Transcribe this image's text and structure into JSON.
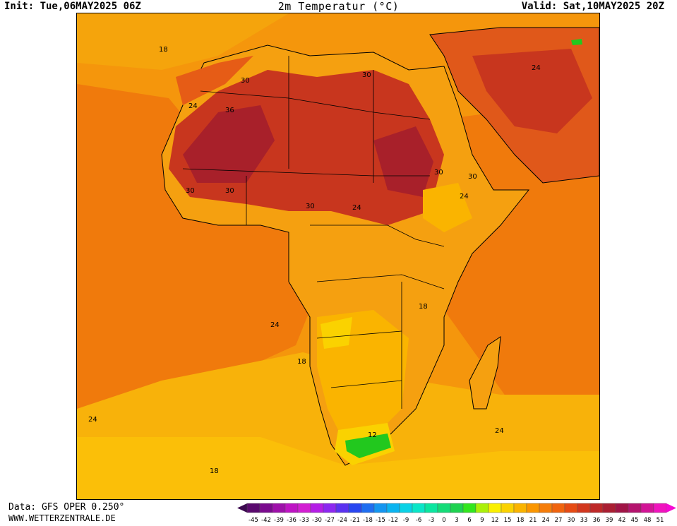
{
  "header": {
    "init": "Init: Tue,06MAY2025 06Z",
    "title": "2m Temperatur (°C)",
    "valid": "Valid: Sat,10MAY2025 20Z"
  },
  "footer": {
    "source": "Data: GFS OPER 0.250°",
    "site": "WWW.WETTERZENTRALE.DE"
  },
  "map": {
    "region": "Africa",
    "contour_labels": [
      {
        "text": "18"
      },
      {
        "text": "30"
      },
      {
        "text": "24"
      },
      {
        "text": "36"
      },
      {
        "text": "30"
      },
      {
        "text": "30"
      },
      {
        "text": "30"
      },
      {
        "text": "24"
      },
      {
        "text": "30"
      },
      {
        "text": "30"
      },
      {
        "text": "24"
      },
      {
        "text": "30"
      },
      {
        "text": "24"
      },
      {
        "text": "18"
      },
      {
        "text": "24"
      },
      {
        "text": "18"
      },
      {
        "text": "24"
      },
      {
        "text": "12"
      },
      {
        "text": "24"
      },
      {
        "text": "18"
      }
    ],
    "colors": {
      "ocean_warm": "#f07a0c",
      "ocean_mid": "#f5960c",
      "ocean_cool": "#f8b20a",
      "land_hot": "#c8361e",
      "land_very_hot": "#a8202a",
      "land_mild": "#f5a010",
      "land_cool_yellow": "#fad200",
      "land_green": "#22c81e"
    }
  },
  "legend": {
    "ticks": [
      "-45",
      "-42",
      "-39",
      "-36",
      "-33",
      "-30",
      "-27",
      "-24",
      "-21",
      "-18",
      "-15",
      "-12",
      "-9",
      "-6",
      "-3",
      "0",
      "3",
      "6",
      "9",
      "12",
      "15",
      "18",
      "21",
      "24",
      "27",
      "30",
      "33",
      "36",
      "39",
      "42",
      "45",
      "48",
      "51"
    ],
    "colors": [
      "#5a0a6e",
      "#7a0a8e",
      "#9e10aa",
      "#be14c4",
      "#d21ed2",
      "#b41ee6",
      "#8c28f0",
      "#5a32f0",
      "#2846f0",
      "#1e6ef0",
      "#1496f0",
      "#0ab4f0",
      "#0ad2e6",
      "#0ae6c8",
      "#0ae6a0",
      "#14dc78",
      "#1ed250",
      "#32e61e",
      "#aaf00a",
      "#faf000",
      "#fad200",
      "#fab400",
      "#fa9600",
      "#f57d0a",
      "#f0640f",
      "#e64b14",
      "#d2371e",
      "#be2828",
      "#aa1e32",
      "#a01446",
      "#b4146e",
      "#d21496",
      "#f014be"
    ],
    "arrow_left_color": "#3c0a50",
    "arrow_right_color": "#f50ad2"
  }
}
